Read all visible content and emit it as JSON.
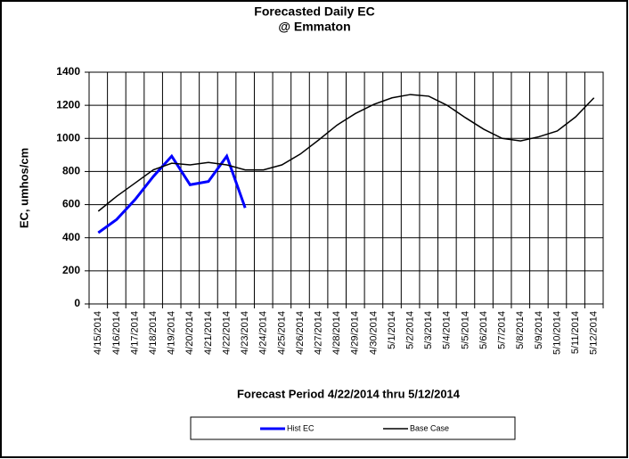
{
  "chart_data": {
    "type": "line",
    "title": "Forecasted Daily EC",
    "subtitle": "@ Emmaton",
    "y_label": "EC, umhos/cm",
    "x_label": "Forecast Period  4/22/2014 thru 5/12/2014",
    "categories": [
      "4/15/2014",
      "4/16/2014",
      "4/17/2014",
      "4/18/2014",
      "4/19/2014",
      "4/20/2014",
      "4/21/2014",
      "4/22/2014",
      "4/23/2014",
      "4/24/2014",
      "4/25/2014",
      "4/26/2014",
      "4/27/2014",
      "4/28/2014",
      "4/29/2014",
      "4/30/2014",
      "5/1/2014",
      "5/2/2014",
      "5/3/2014",
      "5/4/2014",
      "5/5/2014",
      "5/6/2014",
      "5/7/2014",
      "5/8/2014",
      "5/9/2014",
      "5/10/2014",
      "5/11/2014",
      "5/12/2014"
    ],
    "series": [
      {
        "name": "Hist EC",
        "color": "#0000ff",
        "values": [
          430,
          510,
          630,
          770,
          893,
          720,
          740,
          893,
          580,
          null,
          null,
          null,
          null,
          null,
          null,
          null,
          null,
          null,
          null,
          null,
          null,
          null,
          null,
          null,
          null,
          null,
          null,
          null
        ]
      },
      {
        "name": "Base Case",
        "color": "#000000",
        "values": [
          560,
          650,
          730,
          810,
          850,
          840,
          855,
          840,
          810,
          810,
          840,
          905,
          990,
          1080,
          1150,
          1205,
          1245,
          1265,
          1255,
          1200,
          1125,
          1055,
          1000,
          985,
          1010,
          1045,
          1130,
          1245
        ]
      }
    ],
    "ylim": [
      0,
      1400
    ],
    "yticks": [
      0,
      200,
      400,
      600,
      800,
      1000,
      1200,
      1400
    ],
    "grid": true,
    "legend": "bottom"
  }
}
